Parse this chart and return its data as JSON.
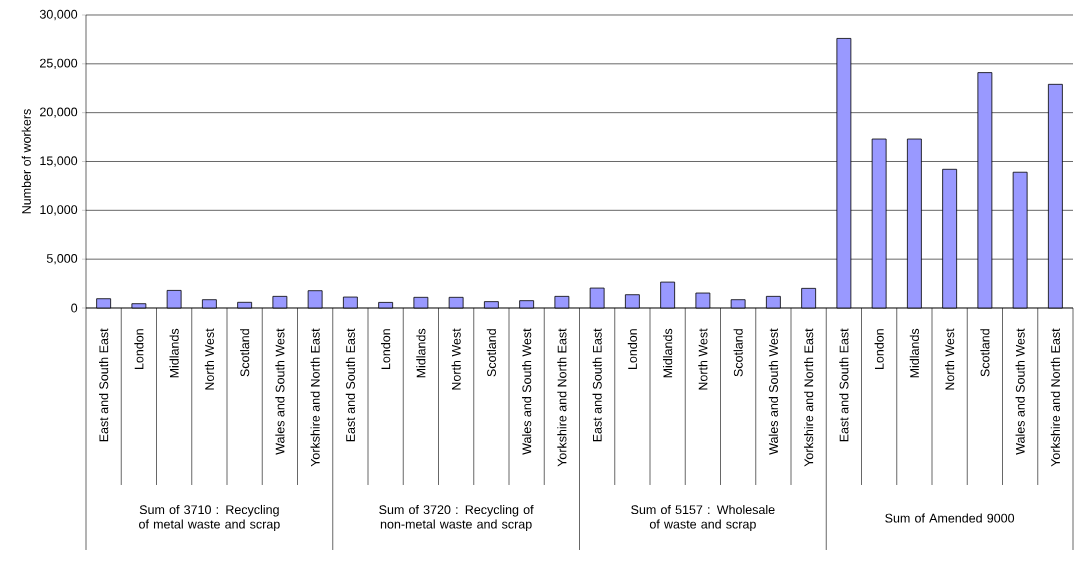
{
  "chart_data": {
    "type": "bar",
    "ylabel": "Number of workers",
    "categories": [
      "East and South East",
      "London",
      "Midlands",
      "North West",
      "Scotland",
      "Wales and South West",
      "Yorkshire and North East",
      "East and South East",
      "London",
      "Midlands",
      "North West",
      "Scotland",
      "Wales and South West",
      "Yorkshire and North East",
      "East and South East",
      "London",
      "Midlands",
      "North West",
      "Scotland",
      "Wales and South West",
      "Yorkshire and North East",
      "East and South East",
      "London",
      "Midlands",
      "North West",
      "Scotland",
      "Wales and South West",
      "Yorkshire and North East"
    ],
    "values": [
      950,
      440,
      1800,
      850,
      580,
      1190,
      1770,
      1120,
      570,
      1090,
      1090,
      650,
      750,
      1190,
      2040,
      1360,
      2650,
      1530,
      850,
      1190,
      2010,
      27600,
      17300,
      17300,
      14200,
      24100,
      13900,
      22900
    ],
    "color": "#9999ff",
    "ylim": [
      0,
      30000
    ],
    "yticks": [
      0,
      {
        "value": 5000,
        "label": "5,000"
      },
      {
        "value": 10000,
        "label": "10,000"
      },
      {
        "value": 15000,
        "label": "15,000"
      },
      {
        "value": 20000,
        "label": "20,000"
      },
      {
        "value": 25000,
        "label": "25,000"
      },
      {
        "value": 30000,
        "label": "30,000"
      }
    ],
    "grid": "y",
    "annotations": [
      "Sum of 3710 : Recycling of metal waste and scrap",
      "Sum of 3720 : Recycling of non-metal waste and scrap",
      "Sum of 5157 : Wholesale of waste and scrap",
      "Sum of Amended 9000"
    ]
  }
}
